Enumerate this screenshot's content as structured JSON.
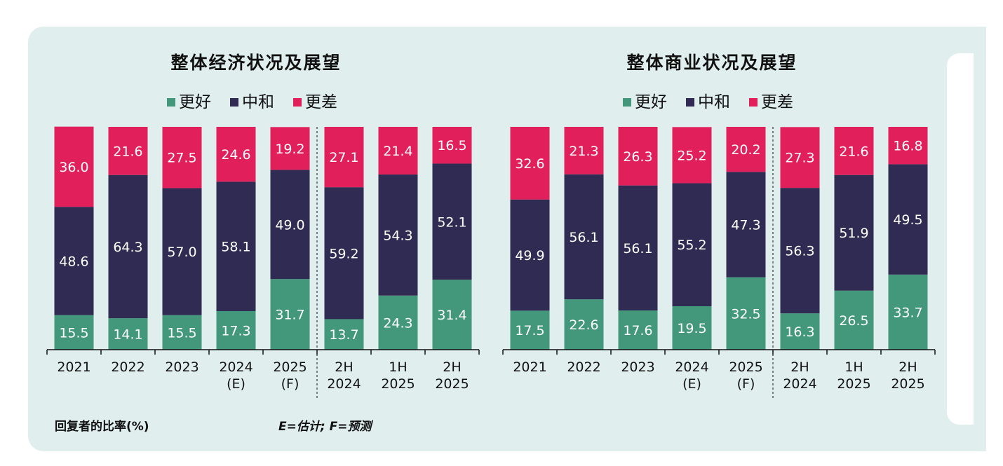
{
  "colors": {
    "better": "#43987b",
    "neutral": "#302b52",
    "worse": "#e01f5b"
  },
  "legend": [
    {
      "key": "better",
      "label": "更好"
    },
    {
      "key": "neutral",
      "label": "中和"
    },
    {
      "key": "worse",
      "label": "更差"
    }
  ],
  "footnote": {
    "left": "回复者的比率(%)",
    "right": "E=估计; F=预测"
  },
  "chart_data": [
    {
      "type": "bar",
      "stacked": true,
      "title": "整体经济状况及展望",
      "categories": [
        [
          "2021"
        ],
        [
          "2022"
        ],
        [
          "2023"
        ],
        [
          "2024",
          "(E)"
        ],
        [
          "2025",
          "(F)"
        ],
        [
          "2H",
          "2024"
        ],
        [
          "1H",
          "2025"
        ],
        [
          "2H",
          "2025"
        ]
      ],
      "series": [
        {
          "name": "更好",
          "key": "better",
          "values": [
            15.5,
            14.1,
            15.5,
            17.3,
            31.7,
            13.7,
            24.3,
            31.4
          ]
        },
        {
          "name": "中和",
          "key": "neutral",
          "values": [
            48.6,
            64.3,
            57.0,
            58.1,
            49.0,
            59.2,
            54.3,
            52.1
          ]
        },
        {
          "name": "更差",
          "key": "worse",
          "values": [
            36.0,
            21.6,
            27.5,
            24.6,
            19.2,
            27.1,
            21.4,
            16.5
          ]
        }
      ],
      "ylim": [
        0,
        100
      ],
      "divider_after_index": 4
    },
    {
      "type": "bar",
      "stacked": true,
      "title": "整体商业状况及展望",
      "categories": [
        [
          "2021"
        ],
        [
          "2022"
        ],
        [
          "2023"
        ],
        [
          "2024",
          "(E)"
        ],
        [
          "2025",
          "(F)"
        ],
        [
          "2H",
          "2024"
        ],
        [
          "1H",
          "2025"
        ],
        [
          "2H",
          "2025"
        ]
      ],
      "series": [
        {
          "name": "更好",
          "key": "better",
          "values": [
            17.5,
            22.6,
            17.6,
            19.5,
            32.5,
            16.3,
            26.5,
            33.7
          ]
        },
        {
          "name": "中和",
          "key": "neutral",
          "values": [
            49.9,
            56.1,
            56.1,
            55.2,
            47.3,
            56.3,
            51.9,
            49.5
          ]
        },
        {
          "name": "更差",
          "key": "worse",
          "values": [
            32.6,
            21.3,
            26.3,
            25.2,
            20.2,
            27.3,
            21.6,
            16.8
          ]
        }
      ],
      "ylim": [
        0,
        100
      ],
      "divider_after_index": 4
    }
  ]
}
